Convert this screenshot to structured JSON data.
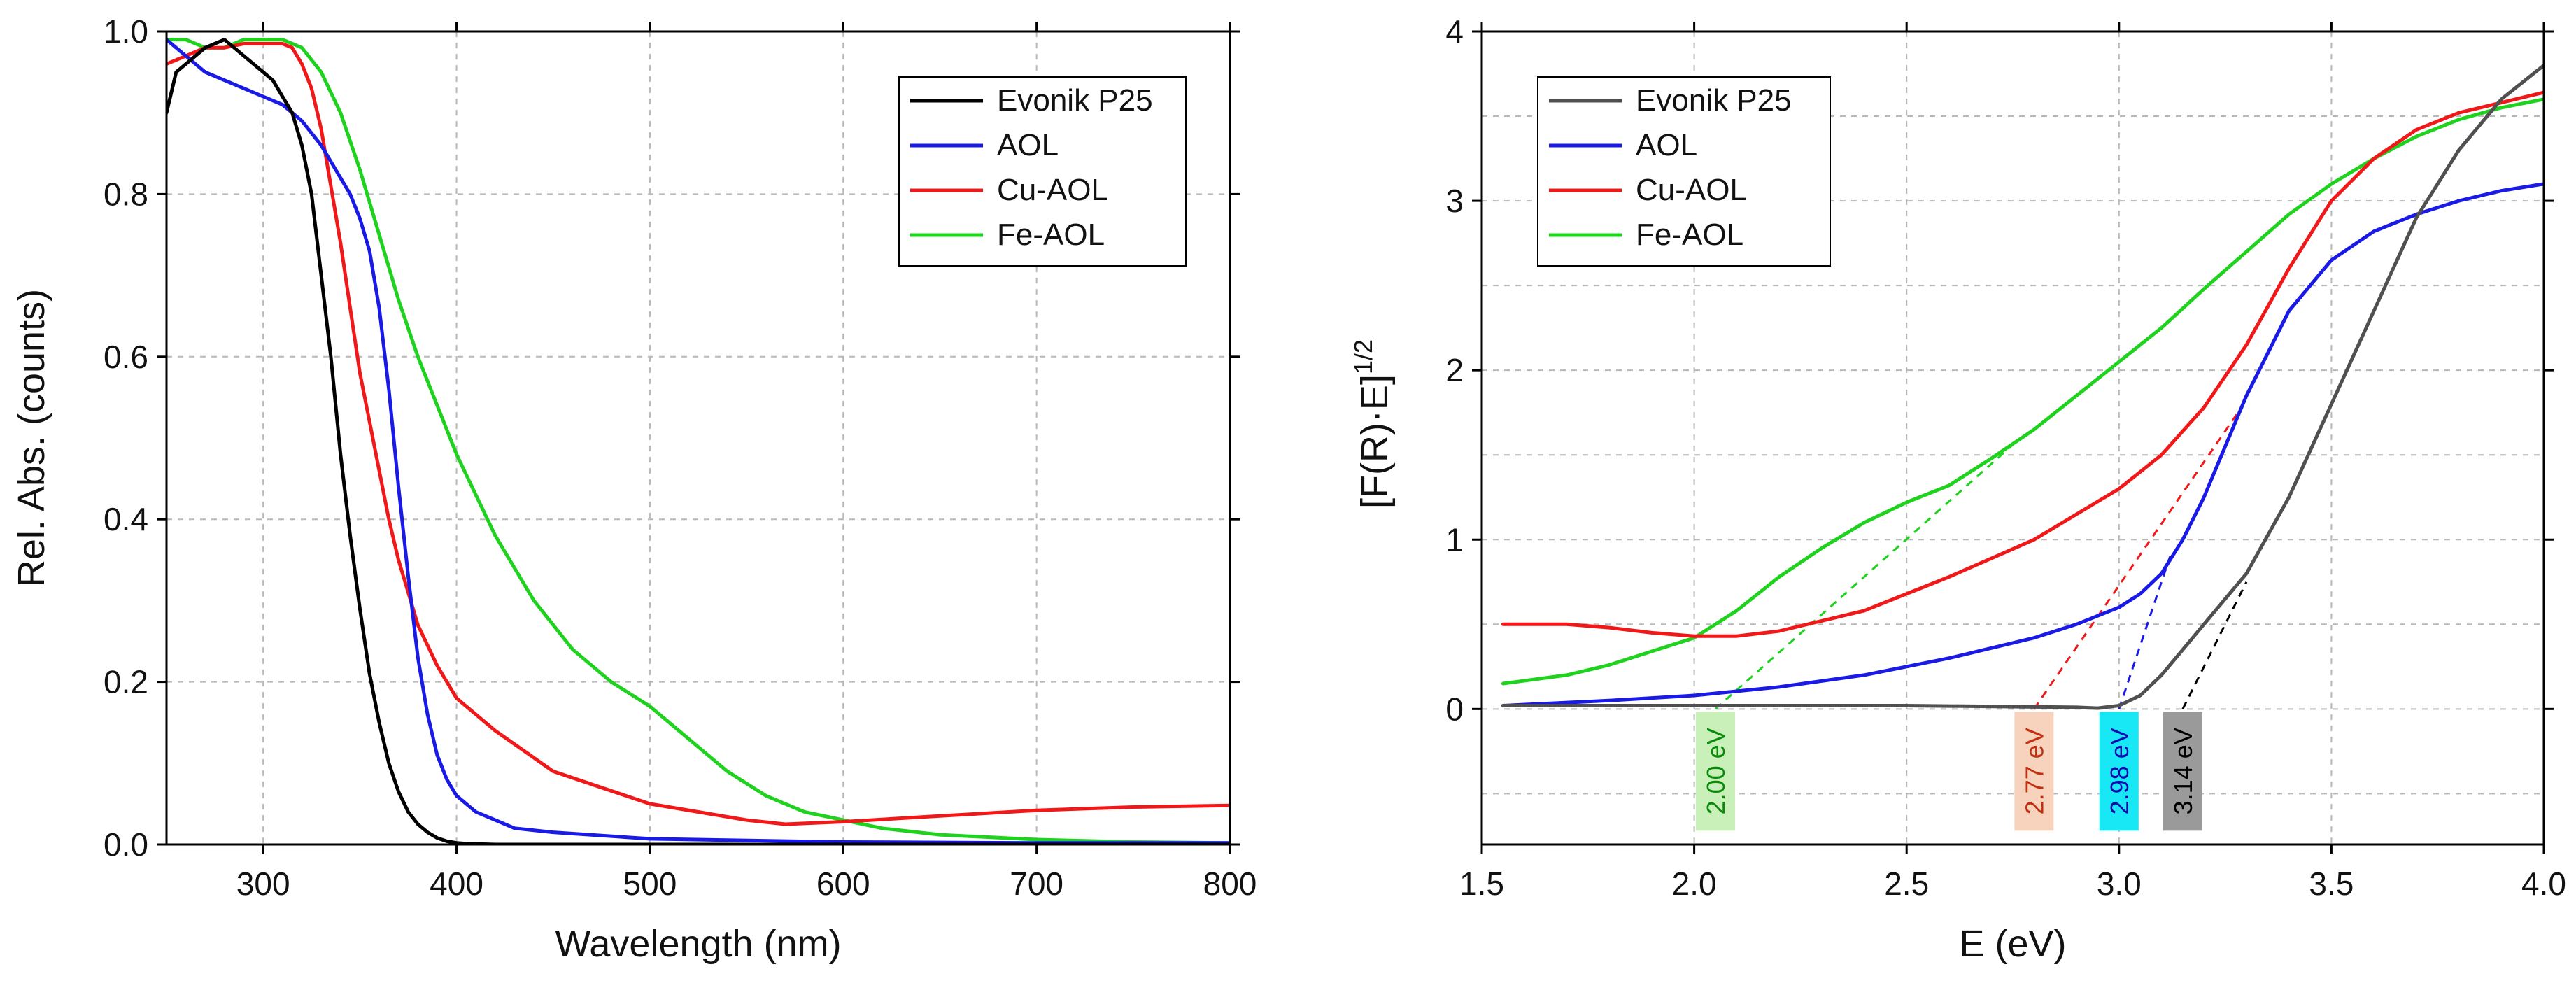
{
  "colors": {
    "Evonik P25": "#000000",
    "Evonik P25 (right)": "#505050",
    "AOL": "#1a1ae6",
    "Cu-AOL": "#f01818",
    "Fe-AOL": "#1ed21e"
  },
  "chart_data": [
    {
      "type": "line",
      "title": "",
      "xlabel": "Wavelength (nm)",
      "ylabel": "Rel. Abs. (counts)",
      "xlim": [
        250,
        800
      ],
      "ylim": [
        0,
        1.0
      ],
      "xticks": [
        300,
        400,
        500,
        600,
        700,
        800
      ],
      "xtick_labels": [
        "300",
        "400",
        "500",
        "600",
        "700",
        "800"
      ],
      "yticks": [
        0,
        0.2,
        0.4,
        0.6,
        0.8,
        1.0
      ],
      "ytick_labels": [
        "0.0",
        "0.2",
        "0.4",
        "0.6",
        "0.8",
        "1.0"
      ],
      "grid": true,
      "legend_position": "top-right",
      "series": [
        {
          "name": "Evonik P25",
          "color": "#000000",
          "x": [
            250,
            255,
            260,
            270,
            280,
            290,
            300,
            305,
            310,
            315,
            320,
            325,
            330,
            335,
            340,
            345,
            350,
            355,
            360,
            365,
            370,
            375,
            380,
            385,
            390,
            395,
            400,
            405,
            420,
            500,
            600,
            800
          ],
          "y": [
            0.9,
            0.95,
            0.96,
            0.98,
            0.99,
            0.97,
            0.95,
            0.94,
            0.92,
            0.9,
            0.86,
            0.8,
            0.7,
            0.6,
            0.48,
            0.38,
            0.29,
            0.21,
            0.15,
            0.1,
            0.065,
            0.04,
            0.025,
            0.015,
            0.008,
            0.004,
            0.002,
            0.001,
            0,
            0,
            0,
            0
          ]
        },
        {
          "name": "AOL",
          "color": "#1a1ae6",
          "x": [
            250,
            260,
            270,
            280,
            290,
            300,
            310,
            320,
            330,
            335,
            340,
            345,
            350,
            355,
            360,
            365,
            370,
            375,
            380,
            385,
            390,
            395,
            400,
            405,
            410,
            420,
            430,
            450,
            500,
            600,
            700,
            800
          ],
          "y": [
            0.99,
            0.97,
            0.95,
            0.94,
            0.93,
            0.92,
            0.91,
            0.89,
            0.86,
            0.84,
            0.82,
            0.8,
            0.77,
            0.73,
            0.66,
            0.56,
            0.44,
            0.33,
            0.23,
            0.16,
            0.11,
            0.08,
            0.06,
            0.05,
            0.04,
            0.03,
            0.02,
            0.015,
            0.007,
            0.003,
            0.002,
            0.002
          ]
        },
        {
          "name": "Cu-AOL",
          "color": "#f01818",
          "x": [
            250,
            260,
            270,
            280,
            290,
            300,
            310,
            315,
            320,
            325,
            330,
            335,
            340,
            345,
            350,
            355,
            360,
            365,
            370,
            375,
            380,
            390,
            400,
            420,
            450,
            500,
            550,
            570,
            600,
            650,
            700,
            750,
            800
          ],
          "y": [
            0.96,
            0.97,
            0.98,
            0.98,
            0.985,
            0.985,
            0.985,
            0.98,
            0.96,
            0.93,
            0.88,
            0.81,
            0.74,
            0.66,
            0.58,
            0.52,
            0.46,
            0.4,
            0.35,
            0.31,
            0.27,
            0.22,
            0.18,
            0.14,
            0.09,
            0.05,
            0.03,
            0.025,
            0.028,
            0.035,
            0.042,
            0.046,
            0.048
          ]
        },
        {
          "name": "Fe-AOL",
          "color": "#1ed21e",
          "x": [
            250,
            260,
            270,
            280,
            290,
            300,
            310,
            320,
            330,
            340,
            350,
            360,
            370,
            380,
            390,
            400,
            420,
            440,
            460,
            480,
            500,
            520,
            540,
            560,
            580,
            600,
            620,
            650,
            700,
            750,
            800
          ],
          "y": [
            0.99,
            0.99,
            0.98,
            0.98,
            0.99,
            0.99,
            0.99,
            0.98,
            0.95,
            0.9,
            0.83,
            0.75,
            0.67,
            0.6,
            0.54,
            0.48,
            0.38,
            0.3,
            0.24,
            0.2,
            0.17,
            0.13,
            0.09,
            0.06,
            0.04,
            0.03,
            0.02,
            0.012,
            0.006,
            0.003,
            0.002
          ]
        }
      ]
    },
    {
      "type": "line",
      "title": "",
      "xlabel": "E (eV)",
      "ylabel_main": "[F(R)·E]",
      "ylabel_sup": "1/2",
      "xlim": [
        1.5,
        4.0
      ],
      "ylim": [
        -0.8,
        4
      ],
      "xticks": [
        1.5,
        2.0,
        2.5,
        3.0,
        3.5,
        4.0
      ],
      "xtick_labels": [
        "1.5",
        "2.0",
        "2.5",
        "3.0",
        "3.5",
        "4.0"
      ],
      "yticks": [
        0,
        1,
        2,
        3,
        4
      ],
      "ytick_labels": [
        "0",
        "1",
        "2",
        "3",
        "4"
      ],
      "grid": true,
      "legend_position": "top-left",
      "series": [
        {
          "name": "Evonik P25",
          "color": "#505050",
          "x": [
            1.55,
            2.0,
            2.5,
            2.9,
            2.95,
            3.0,
            3.05,
            3.1,
            3.15,
            3.2,
            3.3,
            3.4,
            3.5,
            3.6,
            3.7,
            3.8,
            3.9,
            4.0
          ],
          "y": [
            0.02,
            0.02,
            0.02,
            0.01,
            0.005,
            0.02,
            0.08,
            0.2,
            0.35,
            0.5,
            0.8,
            1.25,
            1.8,
            2.35,
            2.9,
            3.3,
            3.6,
            3.8
          ]
        },
        {
          "name": "AOL",
          "color": "#1a1ae6",
          "x": [
            1.55,
            1.8,
            2.0,
            2.2,
            2.4,
            2.6,
            2.8,
            2.9,
            3.0,
            3.05,
            3.1,
            3.15,
            3.2,
            3.3,
            3.4,
            3.5,
            3.6,
            3.7,
            3.8,
            3.9,
            4.0
          ],
          "y": [
            0.02,
            0.05,
            0.08,
            0.13,
            0.2,
            0.3,
            0.42,
            0.5,
            0.6,
            0.68,
            0.8,
            1.0,
            1.25,
            1.85,
            2.35,
            2.65,
            2.82,
            2.92,
            3.0,
            3.06,
            3.1
          ]
        },
        {
          "name": "Cu-AOL",
          "color": "#f01818",
          "x": [
            1.55,
            1.6,
            1.7,
            1.8,
            1.9,
            2.0,
            2.1,
            2.2,
            2.4,
            2.6,
            2.8,
            3.0,
            3.1,
            3.2,
            3.3,
            3.4,
            3.5,
            3.6,
            3.7,
            3.8,
            3.9,
            4.0
          ],
          "y": [
            0.5,
            0.5,
            0.5,
            0.48,
            0.45,
            0.43,
            0.43,
            0.46,
            0.58,
            0.78,
            1.0,
            1.3,
            1.5,
            1.78,
            2.15,
            2.6,
            3.0,
            3.25,
            3.42,
            3.52,
            3.58,
            3.64
          ]
        },
        {
          "name": "Fe-AOL",
          "color": "#1ed21e",
          "x": [
            1.55,
            1.7,
            1.8,
            1.9,
            2.0,
            2.1,
            2.2,
            2.3,
            2.4,
            2.5,
            2.6,
            2.7,
            2.8,
            2.9,
            3.0,
            3.1,
            3.2,
            3.3,
            3.4,
            3.5,
            3.6,
            3.7,
            3.8,
            3.9,
            4.0
          ],
          "y": [
            0.15,
            0.2,
            0.26,
            0.34,
            0.42,
            0.58,
            0.78,
            0.95,
            1.1,
            1.22,
            1.32,
            1.48,
            1.65,
            1.85,
            2.05,
            2.25,
            2.48,
            2.7,
            2.92,
            3.1,
            3.25,
            3.38,
            3.48,
            3.55,
            3.6
          ]
        }
      ],
      "tangent_lines": [
        {
          "series": "Fe-AOL",
          "color": "#1ed21e",
          "x": [
            2.05,
            2.75
          ],
          "y": [
            0,
            1.56
          ]
        },
        {
          "series": "Cu-AOL",
          "color": "#f01818",
          "x": [
            2.8,
            3.28
          ],
          "y": [
            0,
            1.75
          ]
        },
        {
          "series": "AOL",
          "color": "#1a1ae6",
          "x": [
            3.0,
            3.12
          ],
          "y": [
            0,
            0.9
          ]
        },
        {
          "series": "Evonik P25",
          "color": "#000000",
          "x": [
            3.15,
            3.3
          ],
          "y": [
            0,
            0.75
          ]
        }
      ],
      "annotations": [
        {
          "text": "2.00 eV",
          "x": 2.05,
          "bg": "#c8f0b8",
          "fg": "#0a8a0a"
        },
        {
          "text": "2.77 eV",
          "x": 2.8,
          "bg": "#f7d2bc",
          "fg": "#c03010"
        },
        {
          "text": "2.98 eV",
          "x": 3.0,
          "bg": "#18e8f5",
          "fg": "#0a0ab0"
        },
        {
          "text": "3.14 eV",
          "x": 3.15,
          "bg": "#9a9a9a",
          "fg": "#000000"
        }
      ]
    }
  ]
}
